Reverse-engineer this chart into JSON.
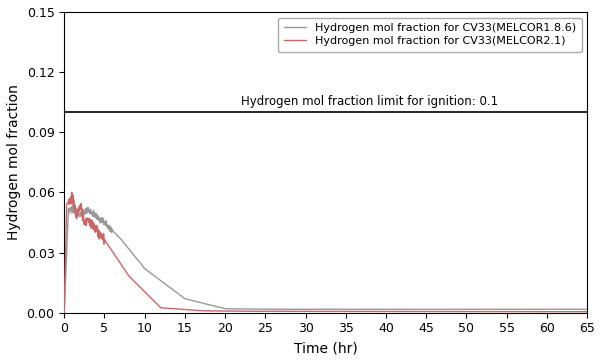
{
  "title": "",
  "xlabel": "Time (hr)",
  "ylabel": "Hydrogen mol fraction",
  "xlim": [
    0,
    65
  ],
  "ylim": [
    0,
    0.15
  ],
  "yticks": [
    0.0,
    0.03,
    0.06,
    0.09,
    0.12,
    0.15
  ],
  "xticks": [
    0,
    5,
    10,
    15,
    20,
    25,
    30,
    35,
    40,
    45,
    50,
    55,
    60,
    65
  ],
  "ignition_limit": 0.1,
  "ignition_label": "Hydrogen mol fraction limit for ignition: 0.1",
  "legend_melcor186": "Hydrogen mol fraction for CV33(MELCOR1.8.6)",
  "legend_melcor21": "Hydrogen mol fraction for CV33(MELCOR2.1)",
  "color_melcor186": "#999999",
  "color_melcor21": "#cc6666",
  "color_ignition_line": "#000000",
  "background_color": "#ffffff",
  "figsize": [
    6.02,
    3.62
  ],
  "dpi": 100
}
